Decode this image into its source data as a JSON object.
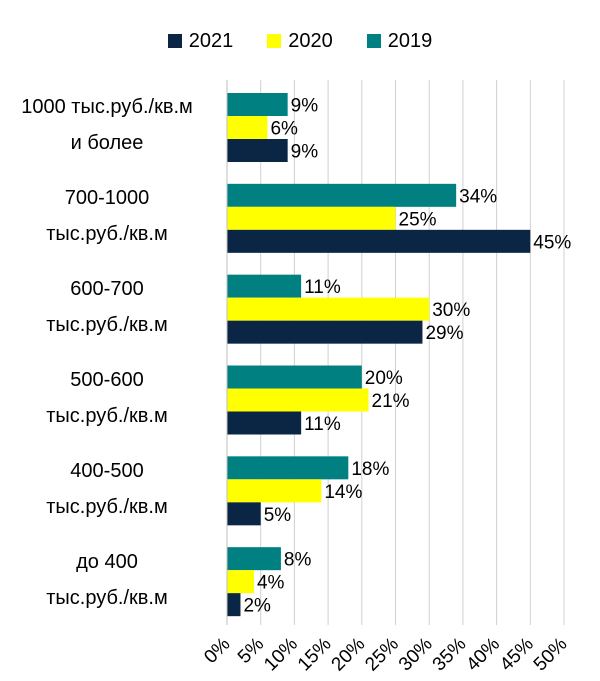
{
  "chart_data": {
    "type": "bar",
    "orientation": "horizontal",
    "categories": [
      [
        "1000 тыс.руб./кв.м",
        "и более"
      ],
      [
        "700-1000",
        "тыс.руб./кв.м"
      ],
      [
        "600-700",
        "тыс.руб./кв.м"
      ],
      [
        "500-600",
        "тыс.руб./кв.м"
      ],
      [
        "400-500",
        "тыс.руб./кв.м"
      ],
      [
        "до 400",
        "тыс.руб./кв.м"
      ]
    ],
    "series": [
      {
        "name": "2019",
        "color": "#008080",
        "values": [
          9,
          34,
          11,
          20,
          18,
          8
        ]
      },
      {
        "name": "2020",
        "color": "#ffff00",
        "values": [
          6,
          25,
          30,
          21,
          14,
          4
        ]
      },
      {
        "name": "2021",
        "color": "#0b2545",
        "values": [
          9,
          45,
          29,
          11,
          5,
          2
        ]
      }
    ],
    "legend_order": [
      "2021",
      "2020",
      "2019"
    ],
    "legend_position": "top",
    "xlim": [
      0,
      50
    ],
    "x_ticks": [
      "0%",
      "5%",
      "10%",
      "15%",
      "20%",
      "25%",
      "30%",
      "35%",
      "40%",
      "45%",
      "50%"
    ],
    "value_suffix": "%",
    "grid": "vertical"
  }
}
